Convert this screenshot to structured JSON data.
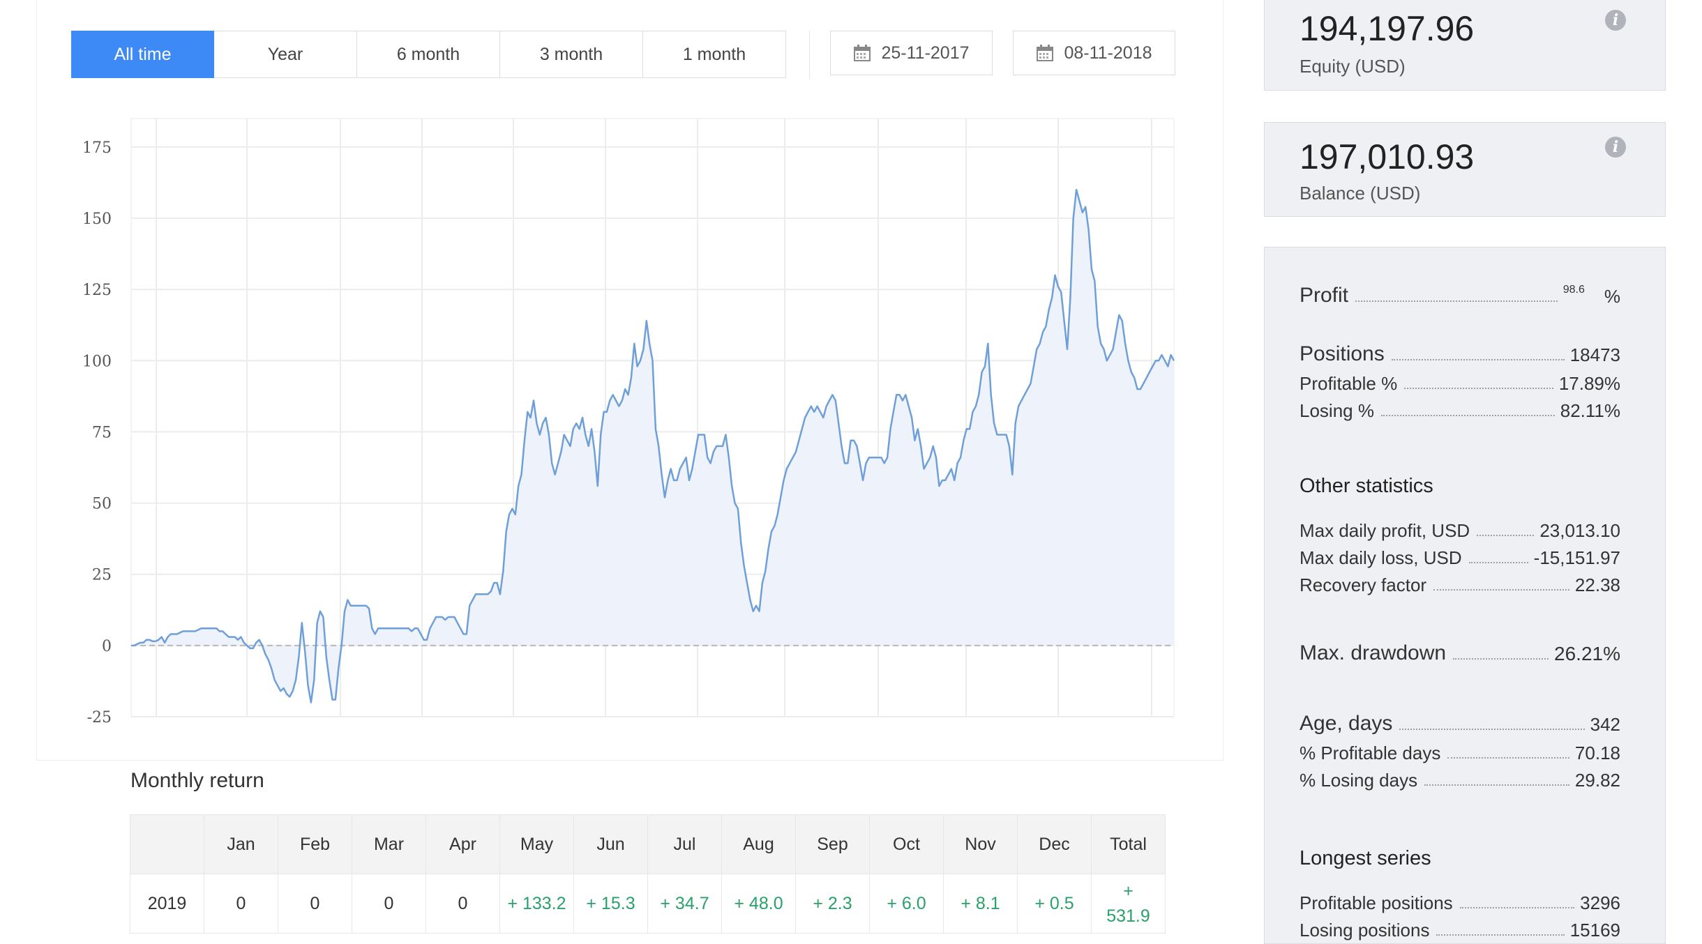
{
  "periods": {
    "items": [
      "All time",
      "Year",
      "6 month",
      "3 month",
      "1 month"
    ],
    "active_index": 0
  },
  "dates": {
    "from": "25-11-2017",
    "to": "08-11-2018"
  },
  "chart_data": {
    "type": "line",
    "title": "",
    "xlabel": "",
    "ylabel": "",
    "ylim": [
      -25,
      185
    ],
    "yticks": [
      175,
      150,
      125,
      100,
      75,
      50,
      25,
      0,
      -25
    ],
    "baseline": 0,
    "fill": true,
    "line_color": "#6f9fd8",
    "fill_color": "#eef2fb",
    "series": [
      {
        "values": [
          0,
          0,
          0.5,
          1,
          1,
          2,
          2,
          1.5,
          1.5,
          2,
          3,
          1,
          3,
          4,
          4,
          4,
          4.5,
          5,
          5,
          5,
          5,
          5,
          5.5,
          6,
          6,
          6,
          6,
          6,
          6,
          5,
          5,
          4,
          3,
          3,
          3,
          2,
          3,
          1,
          0,
          -1,
          -1,
          1,
          2,
          0,
          -3,
          -5,
          -8,
          -12,
          -14,
          -16,
          -15,
          -17,
          -18,
          -16,
          -12,
          -4,
          8,
          -2,
          -14,
          -20,
          -12,
          8,
          12,
          10,
          -4,
          -12,
          -19,
          -19,
          -8,
          0,
          12,
          16,
          14,
          14,
          14,
          14,
          14,
          14,
          13,
          6,
          4,
          6,
          6,
          6,
          6,
          6,
          6,
          6,
          6,
          6,
          6,
          6,
          5,
          6,
          6,
          4,
          2,
          2,
          6,
          8,
          10,
          10,
          10,
          9,
          10,
          10,
          10,
          8,
          6,
          4,
          4,
          14,
          16,
          18,
          18,
          18,
          18,
          18,
          19,
          22,
          22,
          18,
          26,
          40,
          46,
          48,
          46,
          56,
          60,
          72,
          82,
          80,
          86,
          78,
          74,
          78,
          80,
          74,
          64,
          60,
          64,
          68,
          74,
          72,
          70,
          76,
          78,
          76,
          80,
          74,
          70,
          76,
          68,
          56,
          74,
          82,
          82,
          86,
          88,
          86,
          84,
          86,
          90,
          88,
          94,
          106,
          98,
          100,
          104,
          114,
          106,
          100,
          76,
          70,
          60,
          52,
          58,
          62,
          58,
          58,
          62,
          64,
          66,
          58,
          62,
          68,
          74,
          74,
          74,
          66,
          64,
          68,
          70,
          70,
          70,
          74,
          66,
          56,
          50,
          48,
          36,
          28,
          22,
          16,
          12,
          14,
          12,
          22,
          26,
          34,
          40,
          42,
          46,
          52,
          58,
          62,
          64,
          66,
          68,
          72,
          76,
          80,
          82,
          84,
          82,
          84,
          82,
          80,
          84,
          86,
          88,
          86,
          78,
          70,
          64,
          64,
          72,
          72,
          70,
          64,
          58,
          64,
          66,
          66,
          66,
          66,
          66,
          64,
          66,
          76,
          82,
          88,
          88,
          86,
          88,
          84,
          80,
          72,
          76,
          70,
          62,
          64,
          66,
          70,
          66,
          56,
          58,
          58,
          60,
          62,
          58,
          64,
          66,
          72,
          76,
          76,
          82,
          84,
          88,
          96,
          98,
          106,
          88,
          78,
          74,
          74,
          74,
          74,
          70,
          60,
          78,
          84,
          86,
          88,
          90,
          92,
          98,
          104,
          106,
          110,
          112,
          118,
          122,
          130,
          126,
          124,
          114,
          104,
          122,
          150,
          160,
          156,
          152,
          154,
          146,
          132,
          128,
          112,
          106,
          104,
          100,
          102,
          104,
          110,
          116,
          114,
          106,
          100,
          96,
          94,
          90,
          90,
          92,
          94,
          96,
          98,
          100,
          100,
          102,
          100,
          98,
          102,
          100
        ]
      }
    ]
  },
  "monthly": {
    "title": "Monthly return",
    "headers": [
      "",
      "Jan",
      "Feb",
      "Mar",
      "Apr",
      "May",
      "Jun",
      "Jul",
      "Aug",
      "Sep",
      "Oct",
      "Nov",
      "Dec",
      "Total"
    ],
    "row": {
      "year": "2019",
      "values": [
        "0",
        "0",
        "0",
        "0",
        "+ 133.2",
        "+ 15.3",
        "+ 34.7",
        "+ 48.0",
        "+ 2.3",
        "+ 6.0",
        "+ 8.1",
        "+ 0.5"
      ],
      "total_sign": "+",
      "total_value": "531.9"
    }
  },
  "equity": {
    "value": "194,197.96",
    "label": "Equity (USD)"
  },
  "balance": {
    "value": "197,010.93",
    "label": "Balance (USD)"
  },
  "stats": {
    "profit": {
      "label": "Profit",
      "value": "98.6",
      "unit": "%"
    },
    "positions": {
      "label": "Positions",
      "value": "18473"
    },
    "profitable_pct": {
      "label": "Profitable %",
      "value": "17.89%"
    },
    "losing_pct": {
      "label": "Losing %",
      "value": "82.11%"
    },
    "other_title": "Other statistics",
    "max_daily_profit": {
      "label": "Max daily profit, USD",
      "value": "23,013.10"
    },
    "max_daily_loss": {
      "label": "Max daily loss, USD",
      "value": "-15,151.97"
    },
    "recovery": {
      "label": "Recovery factor",
      "value": "22.38"
    },
    "drawdown": {
      "label": "Max. drawdown",
      "value": "26.21%"
    },
    "age": {
      "label": "Age, days",
      "value": "342"
    },
    "profitable_days": {
      "label": "% Profitable days",
      "value": "70.18"
    },
    "losing_days": {
      "label": "% Losing days",
      "value": "29.82"
    },
    "longest_title": "Longest series",
    "profitable_positions": {
      "label": "Profitable positions",
      "value": "3296"
    },
    "losing_positions": {
      "label": "Losing positions",
      "value": "15169"
    }
  }
}
